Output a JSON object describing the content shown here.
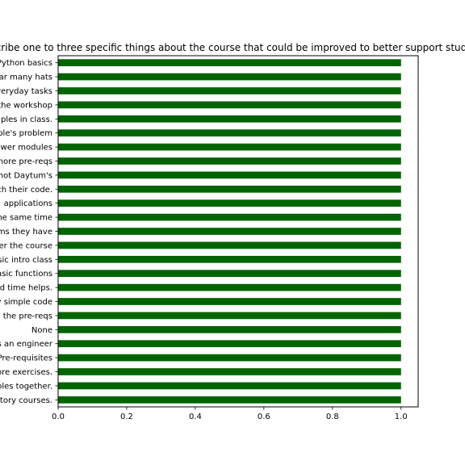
{
  "chart_data": {
    "type": "bar",
    "orientation": "horizontal",
    "title": "Describe one to three specific things about the course that could be improved to better support students",
    "xlabel": "",
    "ylabel": "",
    "xlim": [
      0,
      1.05
    ],
    "x_ticks": [
      "0.0",
      "0.2",
      "0.4",
      "0.6",
      "0.8",
      "1.0"
    ],
    "grid": false,
    "legend": "none",
    "bar_color": "#006400",
    "categories": [
      "Python basics",
      "ar many hats",
      "veryday tasks",
      "the workshop",
      "ples in class.",
      "ple's problem",
      "ewer modules",
      "nore pre-reqs",
      "not Daytum's",
      "ch their code.",
      "applications",
      "ne same time",
      "ms they have",
      "er the course",
      "sic intro class",
      "asic functions",
      "d time helps.",
      "y simple code",
      "the pre-reqs",
      "None",
      "s an engineer",
      "Pre-requisites",
      "ore exercises.",
      "oles together.",
      "tory courses."
    ],
    "values": [
      1,
      1,
      1,
      1,
      1,
      1,
      1,
      1,
      1,
      1,
      1,
      1,
      1,
      1,
      1,
      1,
      1,
      1,
      1,
      1,
      1,
      1,
      1,
      1,
      1
    ]
  }
}
